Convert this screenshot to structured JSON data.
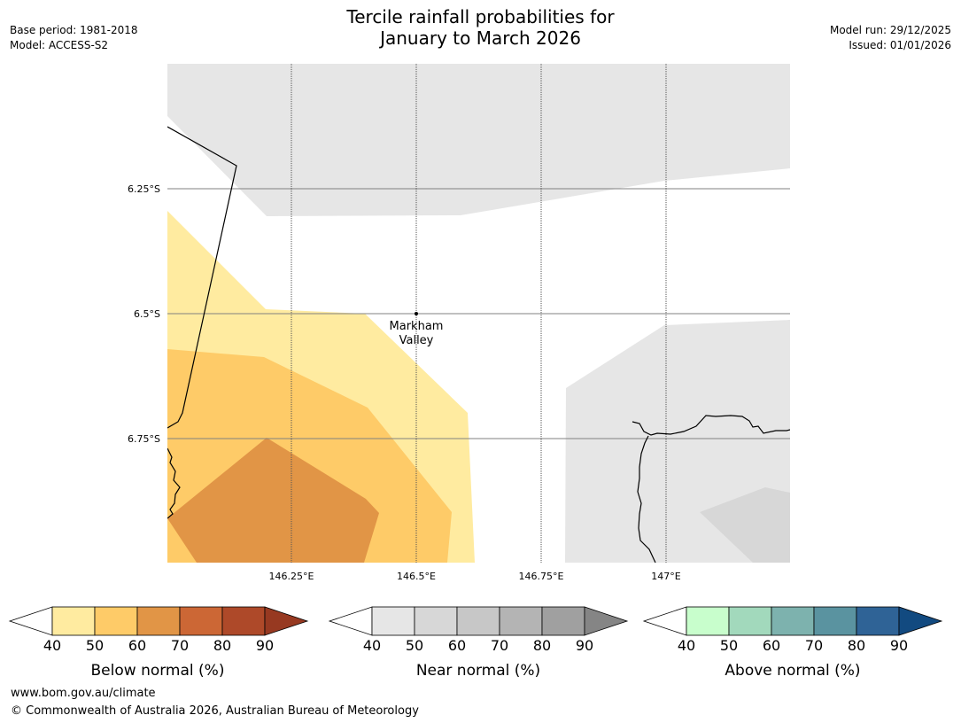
{
  "header": {
    "base_period": "Base period: 1981-2018",
    "model": "Model: ACCESS-S2",
    "title_line1": "Tercile rainfall probabilities for",
    "title_line2": "January to March 2026",
    "model_run": "Model run: 29/12/2025",
    "issued": "Issued: 01/01/2026"
  },
  "map": {
    "lat_labels": [
      "6.25°S",
      "6.5°S",
      "6.75°S"
    ],
    "lon_labels": [
      "146.25°E",
      "146.5°E",
      "146.75°E",
      "147°E"
    ],
    "place": {
      "name_line1": "Markham",
      "name_line2": "Valley"
    },
    "colors": {
      "near_40_50": "#e6e6e6",
      "near_50_60": "#d7d7d7",
      "below_40_50": "#ffeba0",
      "below_50_60": "#fecb68",
      "below_60_70": "#e19546",
      "gridline": "#808080",
      "coast": "#000000"
    }
  },
  "colorbars": [
    {
      "label": "Below normal (%)",
      "ticks": [
        "40",
        "50",
        "60",
        "70",
        "80",
        "90"
      ],
      "colors": [
        "#ffeba0",
        "#fecb68",
        "#e19546",
        "#cc6735",
        "#ae4929",
        "#973921"
      ]
    },
    {
      "label": "Near normal (%)",
      "ticks": [
        "40",
        "50",
        "60",
        "70",
        "80",
        "90"
      ],
      "colors": [
        "#e6e6e6",
        "#d7d7d7",
        "#c7c7c7",
        "#b4b4b4",
        "#a0a0a0",
        "#858585"
      ]
    },
    {
      "label": "Above normal (%)",
      "ticks": [
        "40",
        "50",
        "60",
        "70",
        "80",
        "90"
      ],
      "colors": [
        "#c8fecc",
        "#a2d9bc",
        "#7db2ae",
        "#5a93a0",
        "#2f6396",
        "#124a80"
      ]
    }
  ],
  "footer": {
    "url": "www.bom.gov.au/climate",
    "copyright": "© Commonwealth of Australia 2026, Australian Bureau of Meteorology"
  }
}
